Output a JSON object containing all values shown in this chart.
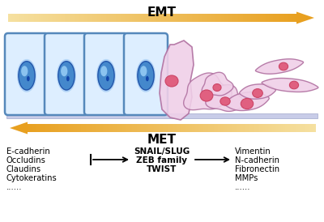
{
  "background_color": "#ffffff",
  "emt_label": "EMT",
  "met_label": "MET",
  "arrow_color_dark": "#e8a020",
  "arrow_color_light": "#f5e0a0",
  "epithelial_fill": "#ddeeff",
  "epithelial_border": "#5588bb",
  "mesenchymal_fill": "#f0d0e8",
  "mesenchymal_border": "#b070a0",
  "nucleus_blue_fill": "#4488cc",
  "nucleus_blue_border": "#2255aa",
  "nucleus_pink_fill": "#e06080",
  "nucleus_pink_border": "#cc4466",
  "nucleolus_blue": "#1144aa",
  "basement_fill": "#c8cce8",
  "basement_border": "#a0a8cc",
  "left_markers": [
    "E-cadherin",
    "Occludins",
    "Claudins",
    "Cytokeratins",
    "......"
  ],
  "center_markers": [
    "SNAIL/SLUG",
    "ZEB family",
    "TWIST"
  ],
  "right_markers": [
    "Vimentin",
    "N-cadherin",
    "Fibronectin",
    "MMPs",
    "......"
  ],
  "fig_width": 4.0,
  "fig_height": 2.74,
  "dpi": 100
}
